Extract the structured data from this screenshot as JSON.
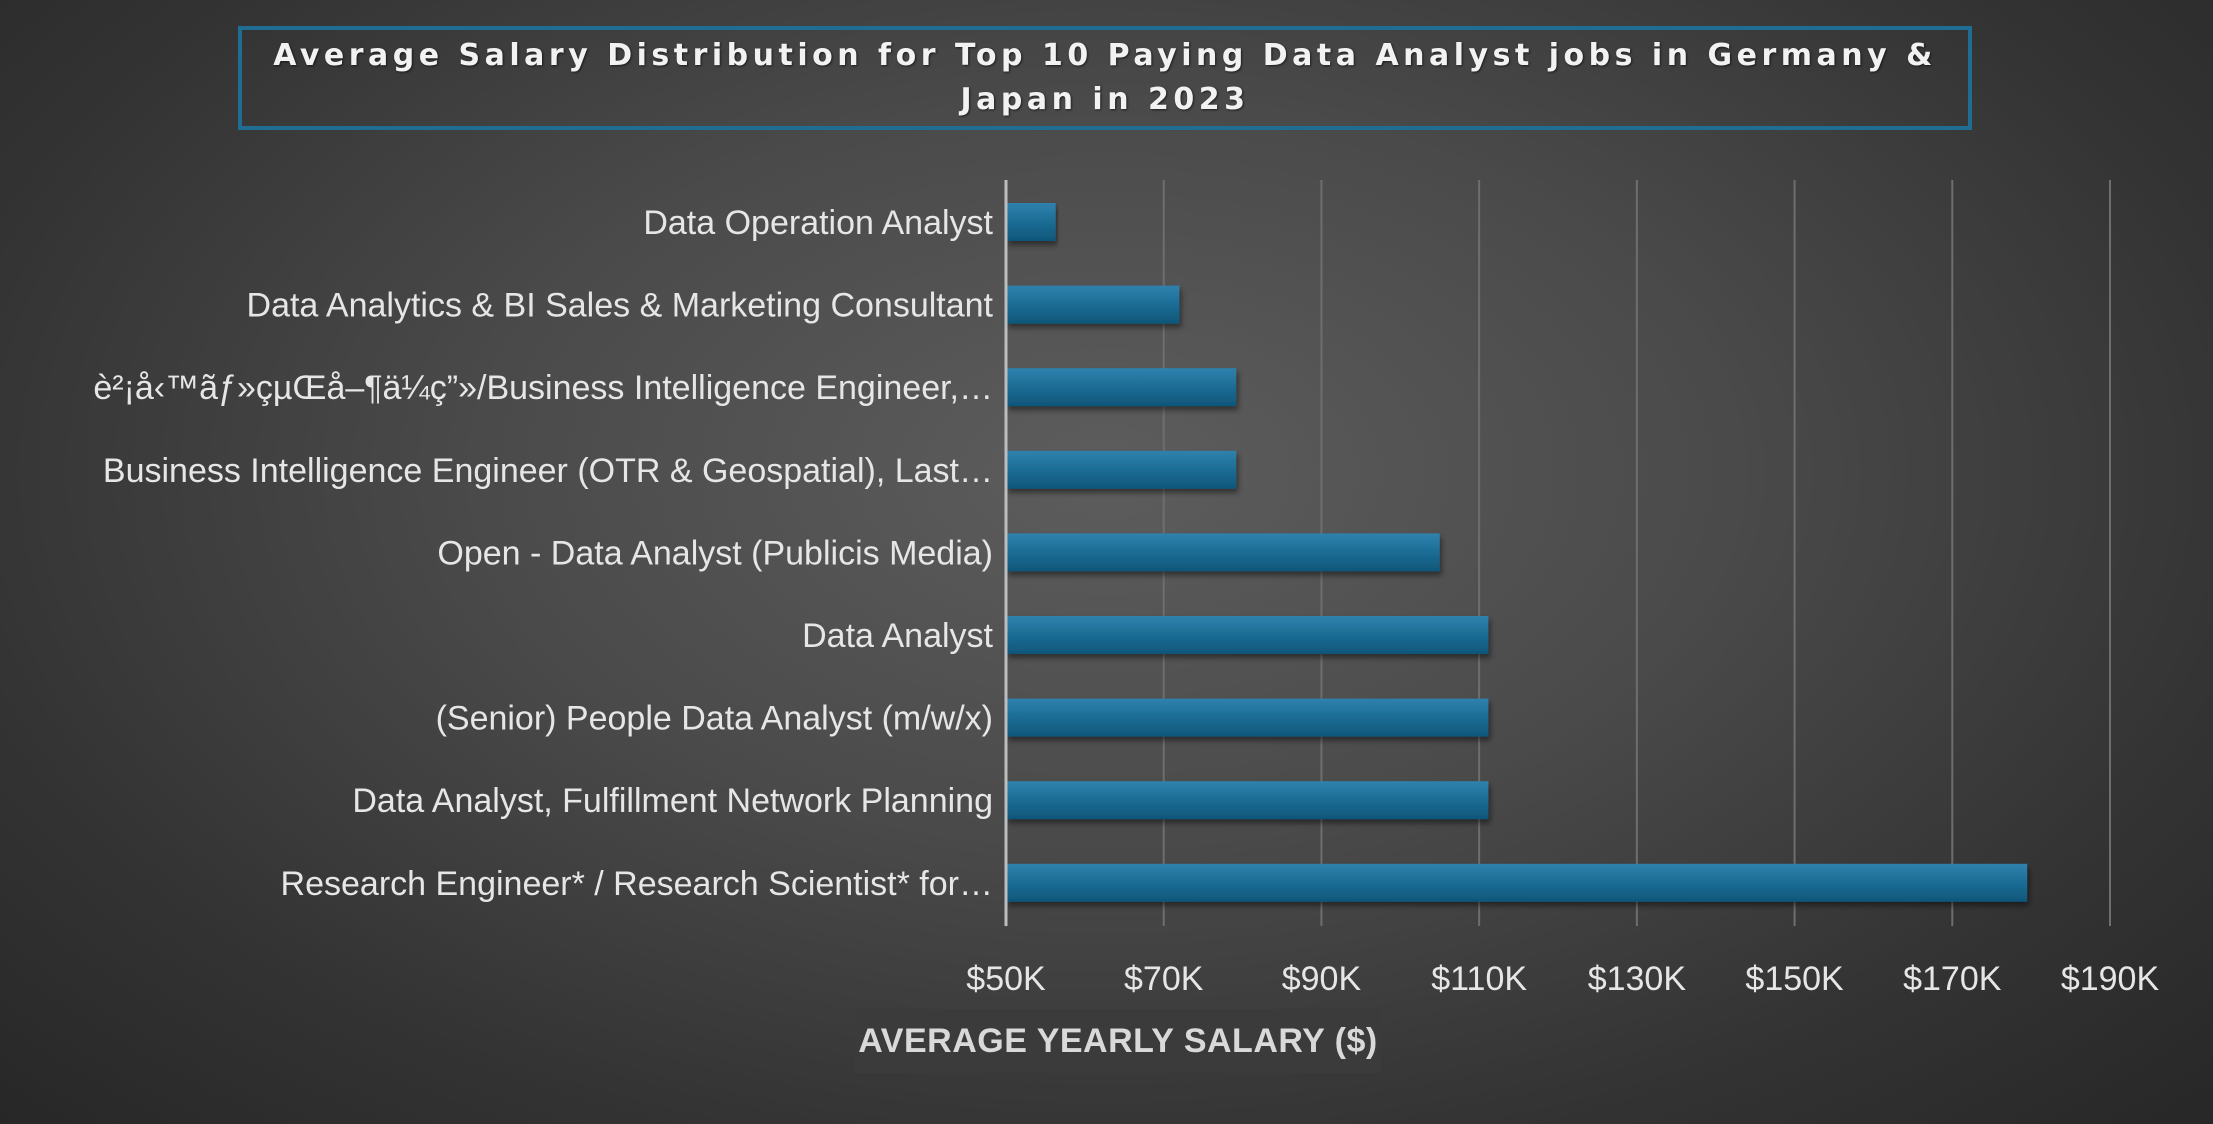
{
  "chart_data": {
    "type": "bar",
    "orientation": "horizontal",
    "title": "Average Salary Distribution for Top 10 Paying Data Analyst jobs in Germany & Japan in 2023",
    "xlabel": "AVERAGE YEARLY SALARY ($)",
    "ylabel": "",
    "xlim": [
      50000,
      190000
    ],
    "xticks": [
      50000,
      70000,
      90000,
      110000,
      130000,
      150000,
      170000,
      190000
    ],
    "xtick_labels": [
      "$50K",
      "$70K",
      "$90K",
      "$110K",
      "$130K",
      "$150K",
      "$170K",
      "$190K"
    ],
    "grid": "vertical",
    "legend": "none",
    "categories": [
      "Data Operation Analyst",
      "Data Analytics & BI Sales & Marketing Consultant",
      "è²¡å‹™ãƒ»çµŒå–¶ä¼ç”»/Business Intelligence Engineer,…",
      "Business Intelligence Engineer (OTR & Geospatial), Last…",
      "Open - Data Analyst (Publicis Media)",
      "Data Analyst",
      "(Senior) People Data Analyst (m/w/x)",
      "Data Analyst, Fulfillment Network Planning",
      "Research Engineer* / Research Scientist* for…"
    ],
    "values": [
      56300,
      72000,
      79200,
      79200,
      105000,
      111175,
      111175,
      111175,
      179500
    ],
    "colors": {
      "bar_top": "#2a7ba5",
      "bar_bottom": "#135f84",
      "title_border": "#1f6d93",
      "text": "#e6e6e6",
      "gridline": "#6e6e6e"
    }
  }
}
